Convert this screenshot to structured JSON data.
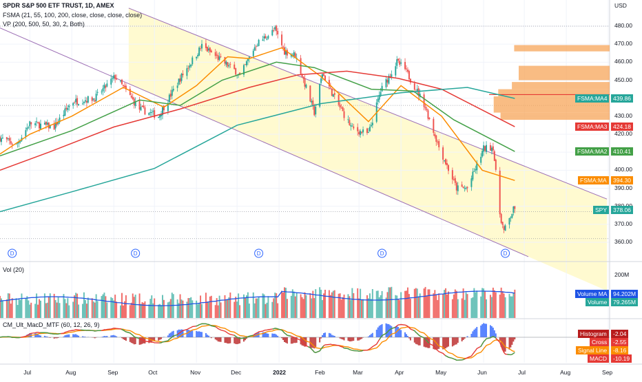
{
  "header": {
    "title": "SPDR S&P 500 ETF TRUST, 1D, AMEX",
    "fsma": "FSMA (21, 55, 100, 200, close, close, close, close)",
    "vp": "VP (200, 500, 50, 30, 2, Both)",
    "currency": "USD"
  },
  "volume_panel": {
    "title": "Vol (20)",
    "scale_label": "200M"
  },
  "macd_panel": {
    "title": "CM_Ult_MacD_MTF (60, 12, 26, 9)"
  },
  "tags": {
    "ma4": {
      "label": "FSMA:MA4",
      "value": "439.86",
      "color": "#26a69a"
    },
    "ma3": {
      "label": "FSMA:MA3",
      "value": "424.18",
      "color": "#e53935"
    },
    "ma2": {
      "label": "FSMA:MA2",
      "value": "410.41",
      "color": "#43a047"
    },
    "ma": {
      "label": "FSMA:MA",
      "value": "394.30",
      "color": "#fb8c00"
    },
    "spy": {
      "label": "SPY",
      "value": "378.06",
      "color": "#26a69a"
    },
    "vol_ma": {
      "label": "Volume MA",
      "value": "94.202M",
      "color": "#1e53e5"
    },
    "volume": {
      "label": "Volume",
      "value": "79.265M",
      "color": "#26a69a"
    },
    "histogram": {
      "label": "Histogram",
      "value": "-2.04",
      "color": "#b71c1c"
    },
    "cross": {
      "label": "Cross",
      "value": "-2.55",
      "color": "#e53935"
    },
    "signal": {
      "label": "Signal Line",
      "value": "-8.16",
      "color": "#fb8c00"
    },
    "macd": {
      "label": "MACD",
      "value": "-10.19",
      "color": "#e53935"
    }
  },
  "chart_data": {
    "type": "candlestick",
    "title": "SPDR S&P 500 ETF TRUST, 1D, AMEX",
    "ylabel": "USD",
    "ylim": [
      355,
      490
    ],
    "y_ticks": [
      "480.00",
      "470.00",
      "460.00",
      "450.00",
      "440.00",
      "430.00",
      "420.00",
      "410.00",
      "400.00",
      "390.00",
      "380.00",
      "370.00",
      "360.00"
    ],
    "x_ticks": [
      "Jul",
      "Aug",
      "Sep",
      "Oct",
      "Nov",
      "Dec",
      "2022",
      "Feb",
      "Mar",
      "Apr",
      "May",
      "Jun",
      "Jul",
      "Aug",
      "Sep"
    ],
    "x_range": [
      "2021-06-09",
      "2022-09-02"
    ],
    "close_path_anchors": [
      [
        "2021-06-09",
        418
      ],
      [
        "2021-06-21",
        414
      ],
      [
        "2021-07-01",
        426
      ],
      [
        "2021-07-19",
        424
      ],
      [
        "2021-08-01",
        438
      ],
      [
        "2021-08-18",
        440
      ],
      [
        "2021-09-02",
        452
      ],
      [
        "2021-09-20",
        434
      ],
      [
        "2021-10-04",
        430
      ],
      [
        "2021-10-20",
        451
      ],
      [
        "2021-11-05",
        469
      ],
      [
        "2021-11-30",
        455
      ],
      [
        "2021-12-03",
        452
      ],
      [
        "2021-12-15",
        470
      ],
      [
        "2021-12-29",
        478
      ],
      [
        "2022-01-05",
        466
      ],
      [
        "2022-01-13",
        464
      ],
      [
        "2022-01-27",
        432
      ],
      [
        "2022-02-02",
        454
      ],
      [
        "2022-02-11",
        440
      ],
      [
        "2022-02-24",
        423
      ],
      [
        "2022-03-08",
        420
      ],
      [
        "2022-03-17",
        444
      ],
      [
        "2022-03-29",
        460
      ],
      [
        "2022-04-04",
        456
      ],
      [
        "2022-04-18",
        437
      ],
      [
        "2022-04-29",
        413
      ],
      [
        "2022-05-12",
        390
      ],
      [
        "2022-05-20",
        390
      ],
      [
        "2022-06-01",
        412
      ],
      [
        "2022-06-08",
        413
      ],
      [
        "2022-06-13",
        376
      ],
      [
        "2022-06-16",
        366
      ],
      [
        "2022-06-23",
        378
      ]
    ],
    "series": [
      {
        "name": "FSMA:MA",
        "color": "#fb8c00",
        "points": [
          [
            "2021-06-09",
            409
          ],
          [
            "2021-07-01",
            420
          ],
          [
            "2021-08-01",
            430
          ],
          [
            "2021-09-08",
            446
          ],
          [
            "2021-10-08",
            435
          ],
          [
            "2021-11-01",
            447
          ],
          [
            "2021-11-24",
            463
          ],
          [
            "2021-12-10",
            462
          ],
          [
            "2022-01-03",
            468
          ],
          [
            "2022-02-01",
            452
          ],
          [
            "2022-03-08",
            427
          ],
          [
            "2022-04-01",
            447
          ],
          [
            "2022-05-01",
            430
          ],
          [
            "2022-05-31",
            400
          ],
          [
            "2022-06-24",
            394.3
          ]
        ]
      },
      {
        "name": "FSMA:MA2",
        "color": "#43a047",
        "points": [
          [
            "2021-06-09",
            408
          ],
          [
            "2021-08-01",
            422
          ],
          [
            "2021-09-20",
            439
          ],
          [
            "2021-10-20",
            436
          ],
          [
            "2021-11-20",
            450
          ],
          [
            "2021-12-30",
            460
          ],
          [
            "2022-01-27",
            457
          ],
          [
            "2022-03-10",
            445
          ],
          [
            "2022-04-10",
            444
          ],
          [
            "2022-05-10",
            428
          ],
          [
            "2022-06-24",
            410.41
          ]
        ]
      },
      {
        "name": "FSMA:MA3",
        "color": "#e53935",
        "points": [
          [
            "2021-06-09",
            400
          ],
          [
            "2021-07-15",
            410
          ],
          [
            "2021-09-01",
            424
          ],
          [
            "2021-10-20",
            434
          ],
          [
            "2021-12-10",
            446
          ],
          [
            "2022-01-15",
            453
          ],
          [
            "2022-02-20",
            455
          ],
          [
            "2022-03-30",
            451
          ],
          [
            "2022-05-01",
            445
          ],
          [
            "2022-06-24",
            424.18
          ]
        ]
      },
      {
        "name": "FSMA:MA4",
        "color": "#26a69a",
        "points": [
          [
            "2021-06-09",
            377
          ],
          [
            "2021-08-01",
            388
          ],
          [
            "2021-10-01",
            401
          ],
          [
            "2021-12-01",
            425
          ],
          [
            "2022-02-01",
            437
          ],
          [
            "2022-04-01",
            443
          ],
          [
            "2022-05-20",
            446
          ],
          [
            "2022-06-24",
            439.86
          ]
        ]
      }
    ],
    "channel": {
      "upper": [
        [
          "2021-09-12",
          490
        ],
        [
          "2022-08-31",
          384
        ]
      ],
      "lower": [
        [
          "2021-06-09",
          479
        ],
        [
          "2022-07-04",
          352
        ]
      ]
    },
    "volume_profile_rows": [
      [
        466,
        469.5,
        84
      ],
      [
        450,
        458,
        80
      ],
      [
        445,
        449,
        86
      ],
      [
        441,
        445,
        98
      ],
      [
        432,
        441,
        102
      ],
      [
        428,
        432,
        96
      ]
    ],
    "volume": {
      "scale_max": 200,
      "ma_last": 94.202,
      "last": 79.265
    },
    "macd": {
      "histogram": -2.04,
      "cross": -2.55,
      "signal": -8.16,
      "macd": -10.19
    },
    "dividend_markers": [
      "D",
      "D",
      "D",
      "D",
      "D"
    ]
  }
}
